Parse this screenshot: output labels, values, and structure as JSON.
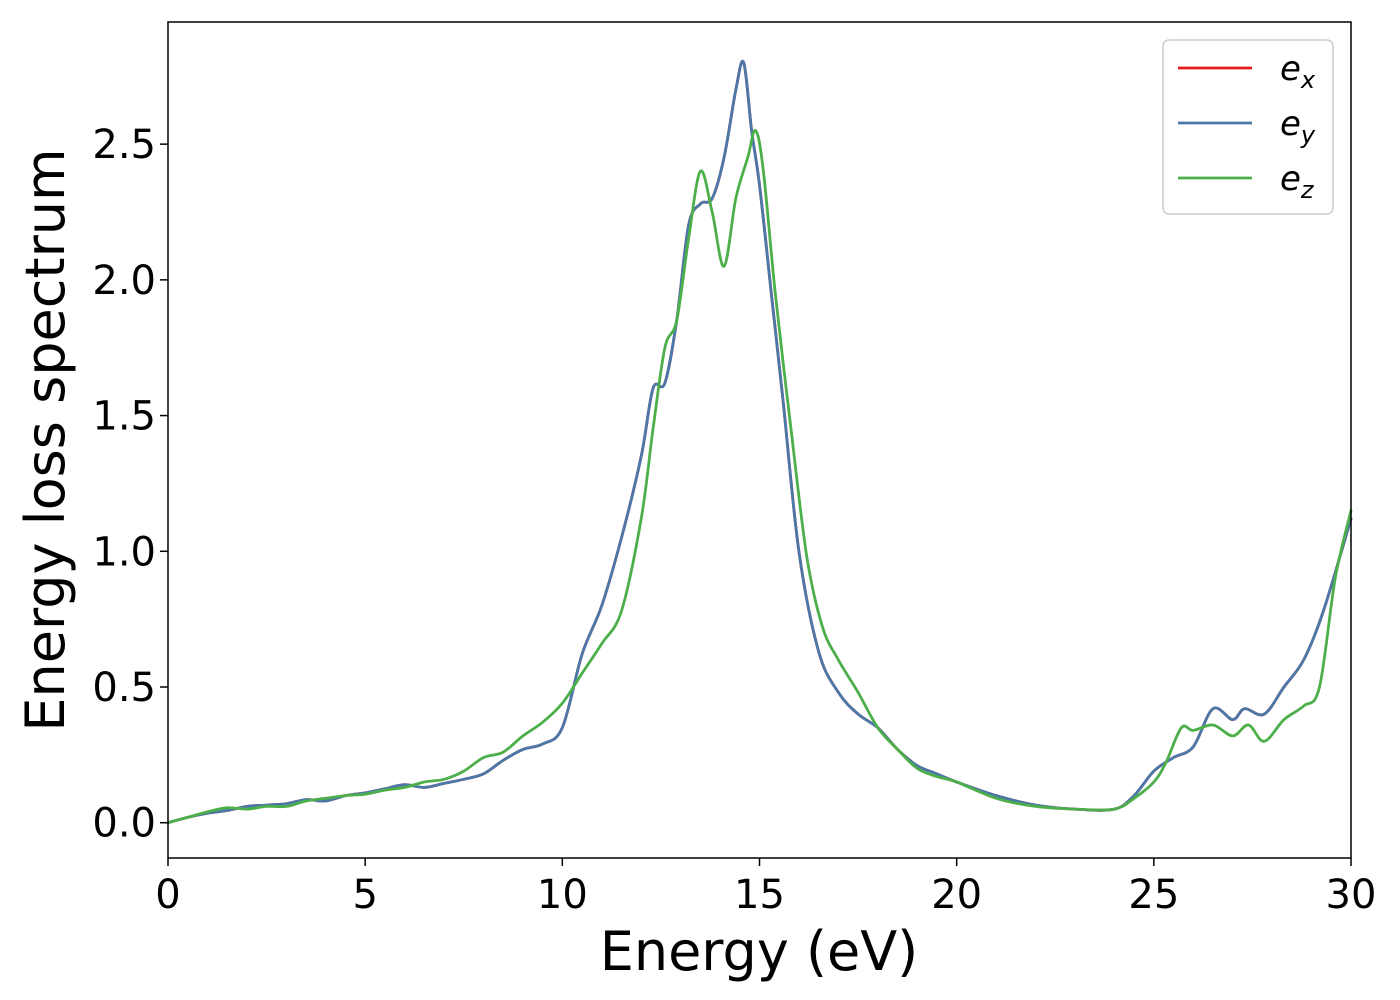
{
  "chart_data": {
    "type": "line",
    "title": "",
    "xlabel": "Energy (eV)",
    "ylabel": "Energy loss spectrum",
    "xlim": [
      0,
      30
    ],
    "ylim": [
      -0.13,
      2.95
    ],
    "xticks": [
      0,
      5,
      10,
      15,
      20,
      25,
      30
    ],
    "xtick_labels": [
      "0",
      "5",
      "10",
      "15",
      "20",
      "25",
      "30"
    ],
    "yticks": [
      0.0,
      0.5,
      1.0,
      1.5,
      2.0,
      2.5
    ],
    "ytick_labels": [
      "0.0",
      "0.5",
      "1.0",
      "1.5",
      "2.0",
      "2.5"
    ],
    "grid": false,
    "legend_position": "top-right",
    "series": [
      {
        "name": "e_x",
        "label_base": "e",
        "label_sub": "x",
        "color": "#e41a1c",
        "x": [
          0,
          0.5,
          1,
          1.5,
          2,
          2.5,
          3,
          3.5,
          4,
          4.5,
          5,
          5.5,
          6,
          6.5,
          7,
          7.5,
          8,
          8.5,
          9,
          9.5,
          10,
          10.5,
          11,
          11.5,
          12,
          12.3,
          12.6,
          12.9,
          13.2,
          13.5,
          13.8,
          14.1,
          14.4,
          14.6,
          14.8,
          15.0,
          15.3,
          15.6,
          16.0,
          16.5,
          17.0,
          17.5,
          18.0,
          18.5,
          19.0,
          19.5,
          20.0,
          21.0,
          22.0,
          23.0,
          24.0,
          24.5,
          25.0,
          25.5,
          26.0,
          26.5,
          27.0,
          27.3,
          27.8,
          28.3,
          28.8,
          29.3,
          30.0
        ],
        "y": [
          0.0,
          0.02,
          0.035,
          0.045,
          0.06,
          0.065,
          0.07,
          0.085,
          0.08,
          0.1,
          0.11,
          0.125,
          0.14,
          0.13,
          0.145,
          0.16,
          0.18,
          0.23,
          0.27,
          0.29,
          0.35,
          0.62,
          0.8,
          1.05,
          1.35,
          1.6,
          1.62,
          1.85,
          2.2,
          2.28,
          2.3,
          2.45,
          2.7,
          2.8,
          2.55,
          2.35,
          1.95,
          1.55,
          1.0,
          0.63,
          0.48,
          0.4,
          0.35,
          0.27,
          0.21,
          0.18,
          0.15,
          0.1,
          0.065,
          0.05,
          0.05,
          0.1,
          0.19,
          0.24,
          0.28,
          0.42,
          0.38,
          0.42,
          0.4,
          0.5,
          0.6,
          0.78,
          1.12
        ]
      },
      {
        "name": "e_y",
        "label_base": "e",
        "label_sub": "y",
        "color": "#4a78a8",
        "x": [
          0,
          0.5,
          1,
          1.5,
          2,
          2.5,
          3,
          3.5,
          4,
          4.5,
          5,
          5.5,
          6,
          6.5,
          7,
          7.5,
          8,
          8.5,
          9,
          9.5,
          10,
          10.5,
          11,
          11.5,
          12,
          12.3,
          12.6,
          12.9,
          13.2,
          13.5,
          13.8,
          14.1,
          14.4,
          14.6,
          14.8,
          15.0,
          15.3,
          15.6,
          16.0,
          16.5,
          17.0,
          17.5,
          18.0,
          18.5,
          19.0,
          19.5,
          20.0,
          21.0,
          22.0,
          23.0,
          24.0,
          24.5,
          25.0,
          25.5,
          26.0,
          26.5,
          27.0,
          27.3,
          27.8,
          28.3,
          28.8,
          29.3,
          30.0
        ],
        "y": [
          0.0,
          0.02,
          0.035,
          0.045,
          0.06,
          0.065,
          0.07,
          0.085,
          0.08,
          0.1,
          0.11,
          0.125,
          0.14,
          0.13,
          0.145,
          0.16,
          0.18,
          0.23,
          0.27,
          0.29,
          0.35,
          0.62,
          0.8,
          1.05,
          1.35,
          1.6,
          1.62,
          1.85,
          2.2,
          2.28,
          2.3,
          2.45,
          2.7,
          2.8,
          2.55,
          2.35,
          1.95,
          1.55,
          1.0,
          0.63,
          0.48,
          0.4,
          0.35,
          0.27,
          0.21,
          0.18,
          0.15,
          0.1,
          0.065,
          0.05,
          0.05,
          0.1,
          0.19,
          0.24,
          0.28,
          0.42,
          0.38,
          0.42,
          0.4,
          0.5,
          0.6,
          0.78,
          1.12
        ]
      },
      {
        "name": "e_z",
        "label_base": "e",
        "label_sub": "z",
        "color": "#4daf4a",
        "x": [
          0,
          0.5,
          1,
          1.5,
          2,
          2.5,
          3,
          3.5,
          4,
          4.5,
          5,
          5.5,
          6,
          6.5,
          7,
          7.5,
          8,
          8.5,
          9,
          9.5,
          10,
          10.5,
          11,
          11.5,
          12,
          12.3,
          12.6,
          12.9,
          13.2,
          13.5,
          13.8,
          14.1,
          14.4,
          14.7,
          14.9,
          15.1,
          15.4,
          15.8,
          16.2,
          16.6,
          17.0,
          17.5,
          18.0,
          18.5,
          19.0,
          19.5,
          20.0,
          21.0,
          22.0,
          23.0,
          24.0,
          24.5,
          25.0,
          25.3,
          25.7,
          26.0,
          26.5,
          27.0,
          27.4,
          27.8,
          28.3,
          28.8,
          29.2,
          29.6,
          30.0
        ],
        "y": [
          0.0,
          0.02,
          0.04,
          0.055,
          0.05,
          0.06,
          0.06,
          0.08,
          0.09,
          0.1,
          0.105,
          0.12,
          0.13,
          0.15,
          0.16,
          0.19,
          0.24,
          0.26,
          0.32,
          0.37,
          0.44,
          0.55,
          0.66,
          0.78,
          1.12,
          1.45,
          1.75,
          1.85,
          2.15,
          2.4,
          2.25,
          2.05,
          2.3,
          2.45,
          2.55,
          2.4,
          1.95,
          1.45,
          0.98,
          0.72,
          0.6,
          0.48,
          0.35,
          0.27,
          0.2,
          0.17,
          0.15,
          0.09,
          0.06,
          0.05,
          0.05,
          0.09,
          0.15,
          0.22,
          0.35,
          0.34,
          0.36,
          0.32,
          0.36,
          0.3,
          0.38,
          0.43,
          0.5,
          0.9,
          1.15
        ]
      }
    ]
  }
}
